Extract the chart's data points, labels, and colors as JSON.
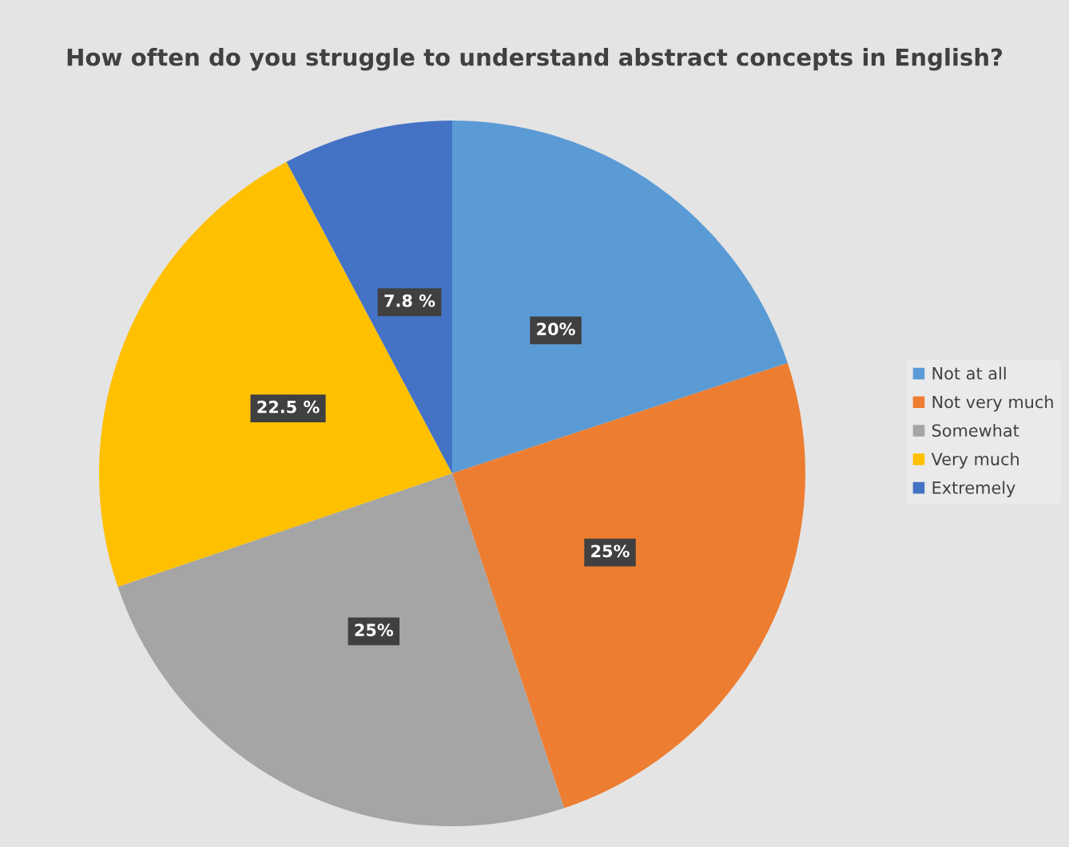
{
  "chart_data": {
    "type": "pie",
    "title": "How often do you struggle to understand abstract concepts in English?",
    "categories": [
      "Not at all",
      "Not very much",
      "Somewhat",
      "Very much",
      "Extremely"
    ],
    "values": [
      20,
      25,
      25,
      22.5,
      7.8
    ],
    "colors": [
      "#5b9bd5",
      "#ed7d31",
      "#a5a5a5",
      "#ffc000",
      "#4472c4"
    ],
    "value_labels": [
      "20%",
      "25%",
      "25%",
      "22.5 %",
      "7.8 %"
    ],
    "legend": "right"
  }
}
